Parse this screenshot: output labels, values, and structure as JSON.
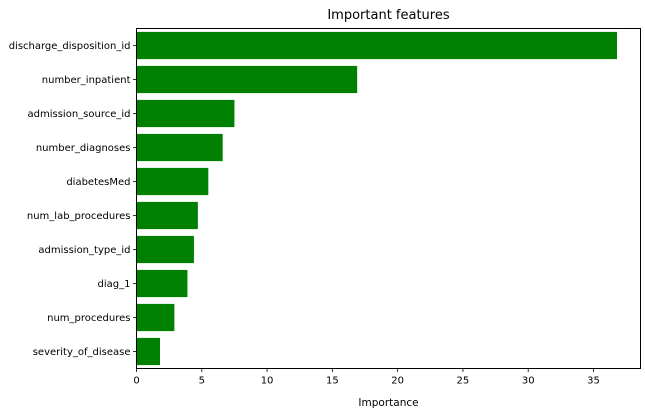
{
  "chart_data": {
    "type": "bar",
    "orientation": "horizontal",
    "title": "Important features",
    "xlabel": "Importance",
    "ylabel": "",
    "categories": [
      "discharge_disposition_id",
      "number_inpatient",
      "admission_source_id",
      "number_diagnoses",
      "diabetesMed",
      "num_lab_procedures",
      "admission_type_id",
      "diag_1",
      "num_procedures",
      "severity_of_disease"
    ],
    "values": [
      36.8,
      16.9,
      7.5,
      6.6,
      5.5,
      4.7,
      4.4,
      3.9,
      2.9,
      1.8
    ],
    "xlim": [
      0,
      38.6
    ],
    "xticks": [
      0,
      5,
      10,
      15,
      20,
      25,
      30,
      35
    ],
    "bar_color": "#008000",
    "grid": false,
    "legend": "none"
  }
}
